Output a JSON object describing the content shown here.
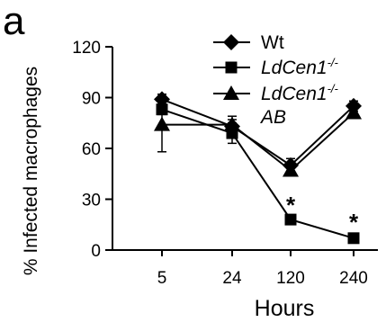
{
  "panel_label": "a",
  "chart_data": {
    "type": "line",
    "xlabel": "Hours",
    "ylabel": "% Infected macrophages",
    "categories": [
      "5",
      "24",
      "120",
      "240"
    ],
    "ylim": [
      0,
      120
    ],
    "yticks": [
      0,
      30,
      60,
      90,
      120
    ],
    "grid": false,
    "legend_position": "top-right",
    "series": [
      {
        "name": "Wt",
        "marker": "diamond",
        "values": [
          89,
          73,
          50,
          85
        ],
        "errors": [
          3,
          4,
          4,
          3
        ]
      },
      {
        "name": "LdCen1-/-",
        "name_parts": {
          "base": "LdCen1",
          "sup": "-/-"
        },
        "marker": "square",
        "values": [
          83,
          69,
          18,
          7
        ],
        "errors": [
          3,
          6,
          2,
          1
        ]
      },
      {
        "name": "LdCen1-/- AB",
        "name_parts": {
          "base": "LdCen1",
          "sup": "-/-",
          "line2": "AB"
        },
        "marker": "triangle",
        "values": [
          74,
          74,
          47,
          81
        ],
        "errors": [
          16,
          5,
          3,
          3
        ]
      }
    ],
    "annotations": [
      {
        "text": "*",
        "x": "120",
        "y": 27
      },
      {
        "text": "*",
        "x": "240",
        "y": 17
      }
    ]
  }
}
